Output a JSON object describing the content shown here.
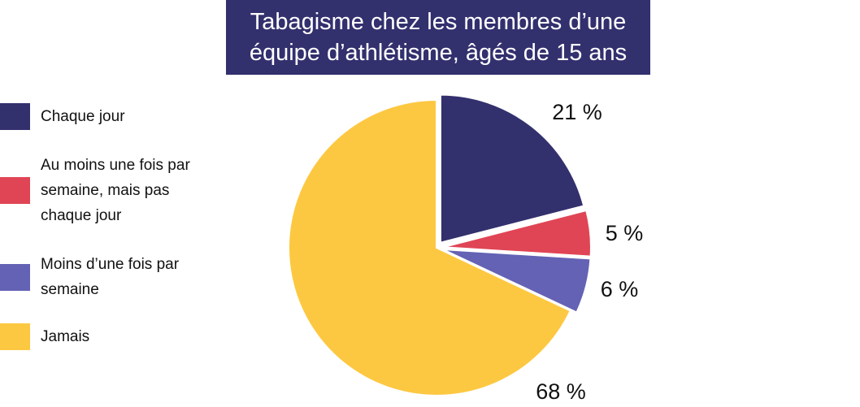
{
  "chart_data": {
    "type": "pie",
    "title": "Tabagisme chez les membres d’une équipe d’athlétisme, âgés de 15 ans",
    "categories": [
      "Chaque jour",
      "Au moins une fois par semaine, mais pas chaque jour",
      "Moins d’une fois par semaine",
      "Jamais"
    ],
    "values": [
      21,
      5,
      6,
      68
    ],
    "value_labels": [
      "21 %",
      "5 %",
      "6 %",
      "68 %"
    ],
    "colors": [
      "#33306e",
      "#e04555",
      "#6462b4",
      "#fdc841"
    ]
  }
}
